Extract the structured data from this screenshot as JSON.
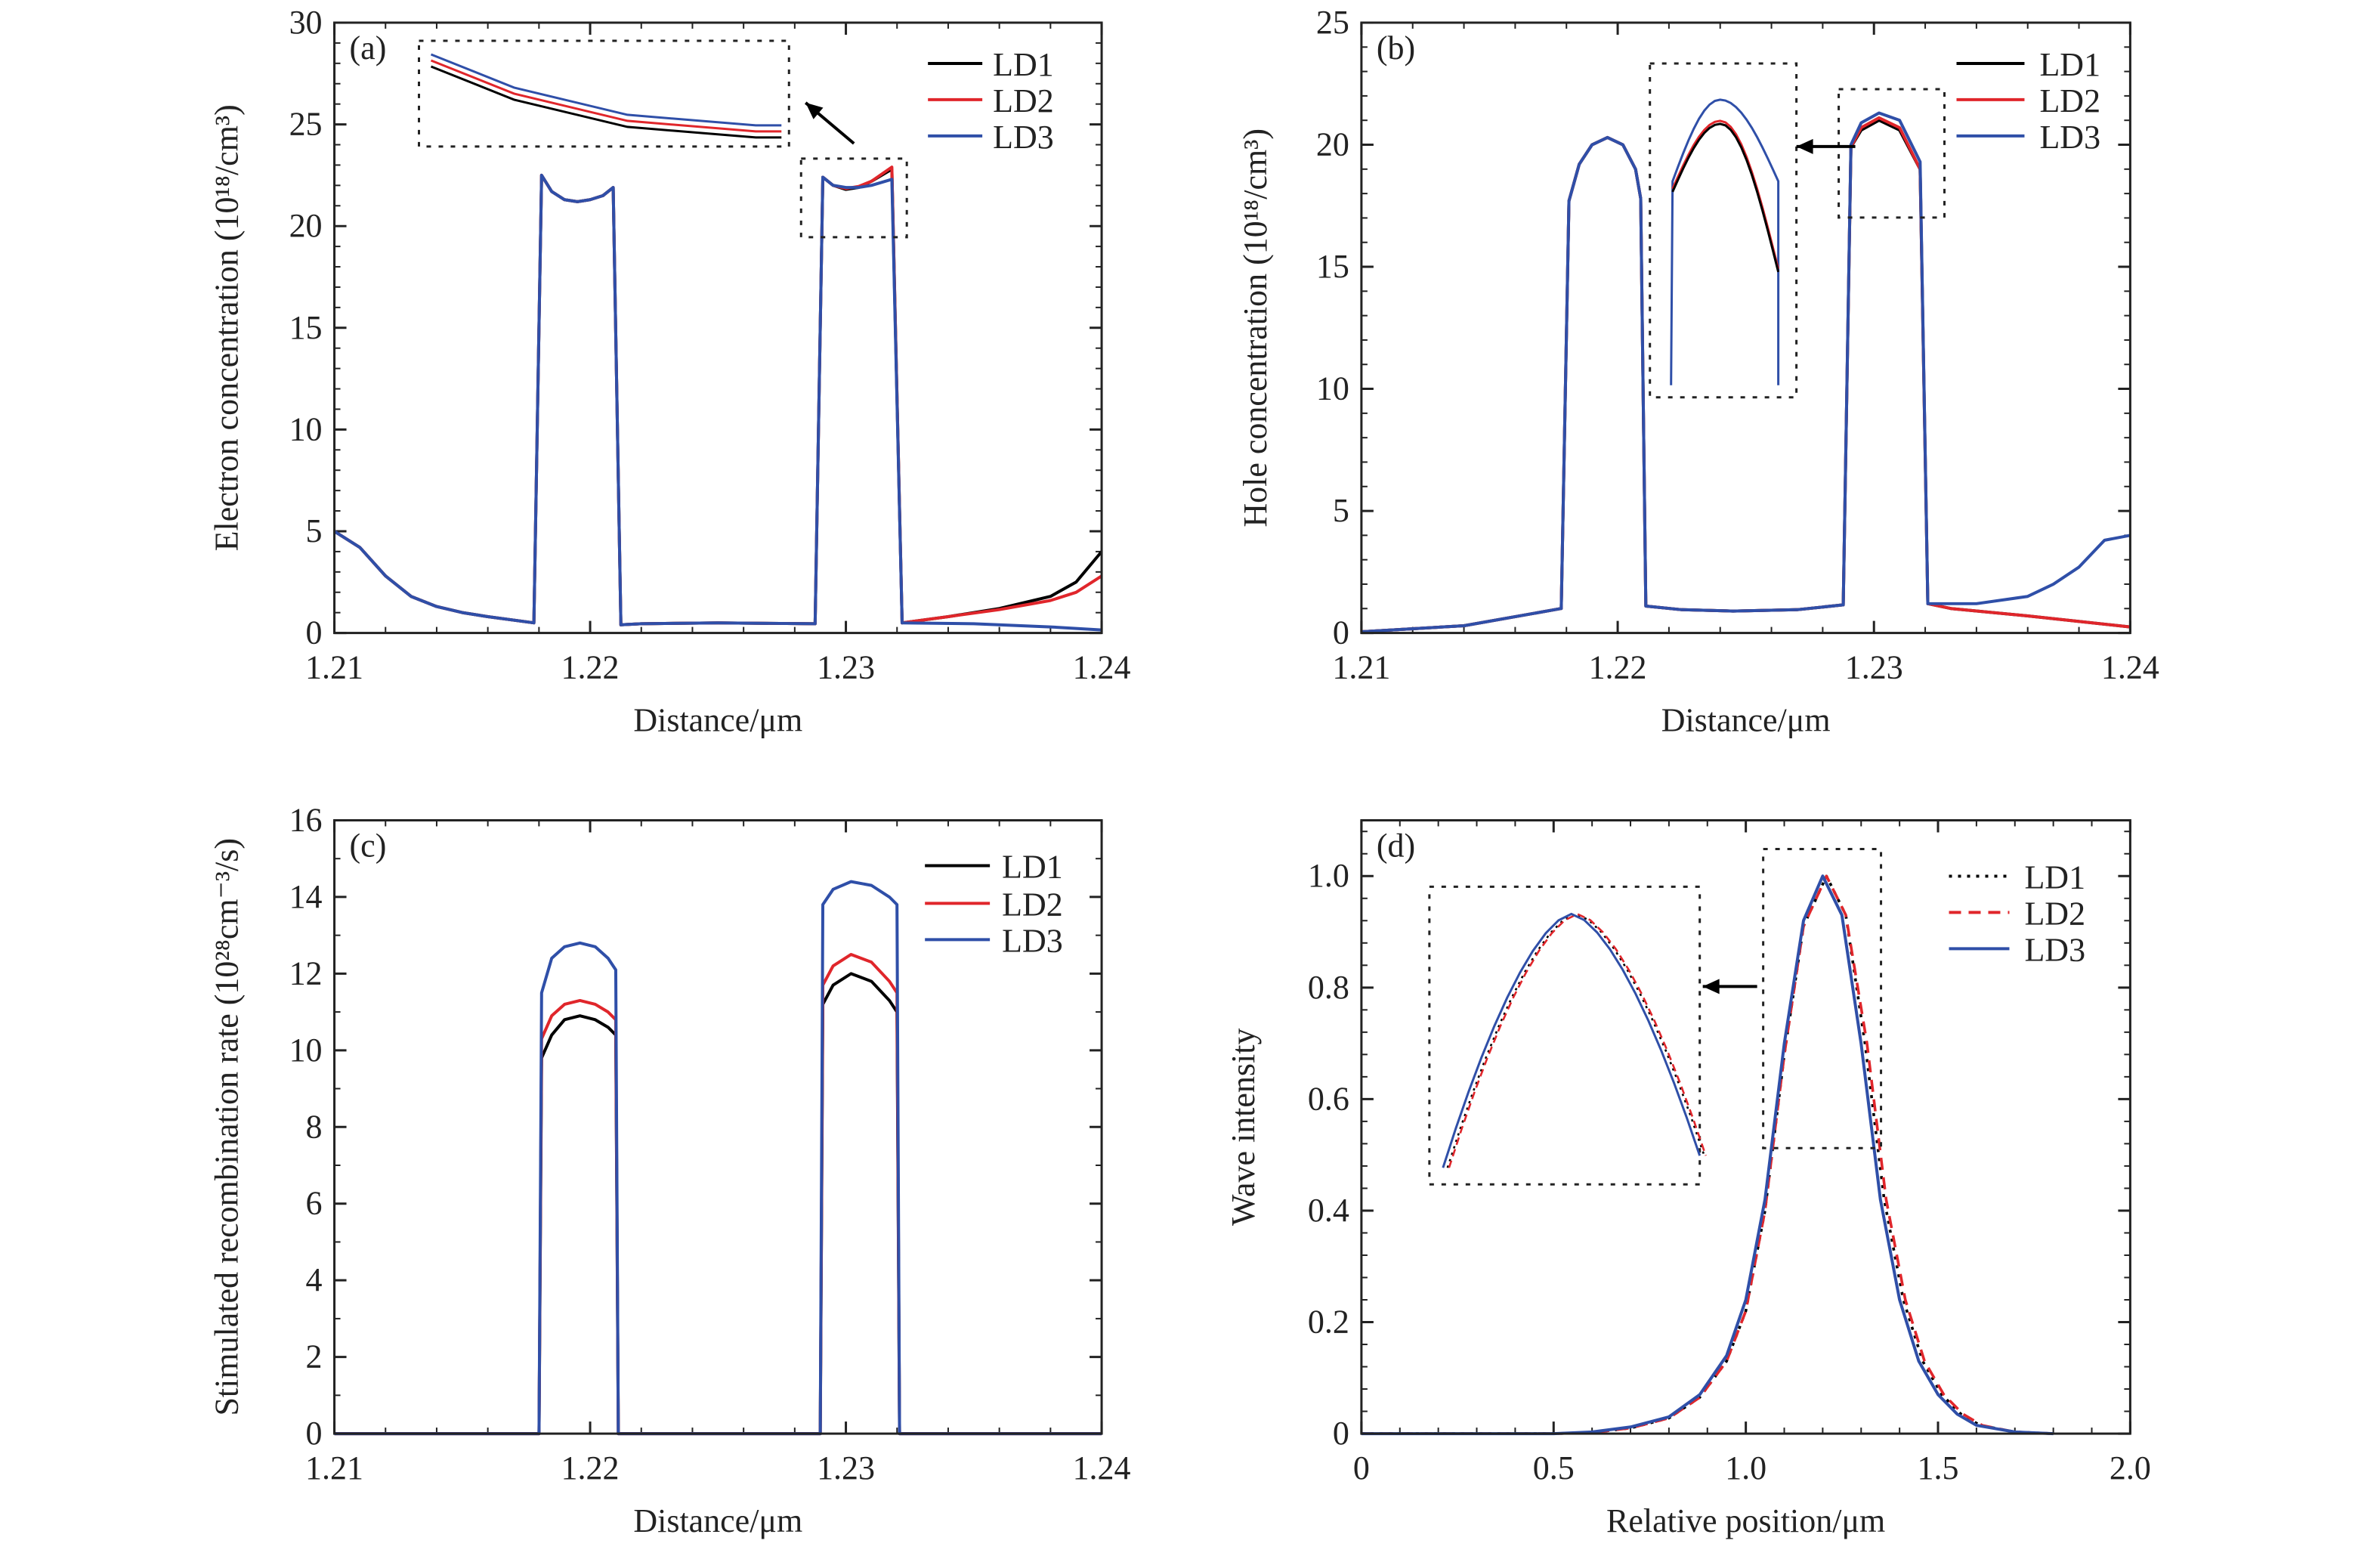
{
  "colors": {
    "LD1": "#000000",
    "LD2": "#e0262b",
    "LD3": "#2f4fa8"
  },
  "chart_data": [
    {
      "type": "line",
      "panel_label": "(a)",
      "xlabel": "Distance/μm",
      "ylabel": "Electron concentration (10¹⁸/cm³)",
      "xlim": [
        1.21,
        1.24
      ],
      "ylim": [
        0,
        30
      ],
      "xticks": [
        1.21,
        1.22,
        1.23,
        1.24
      ],
      "xtick_labels": [
        "1.21",
        "1.22",
        "1.23",
        "1.24"
      ],
      "xminor": 0.002,
      "yticks": [
        0,
        5,
        10,
        15,
        20,
        25,
        30
      ],
      "ytick_labels": [
        "0",
        "5",
        "10",
        "15",
        "20",
        "25",
        "30"
      ],
      "yminor": 1,
      "legend": {
        "placement": "top-right"
      },
      "series": [
        {
          "name": "LD1",
          "style": "solid",
          "x": [
            1.21,
            1.211,
            1.212,
            1.213,
            1.214,
            1.215,
            1.216,
            1.2178,
            1.2181,
            1.2185,
            1.219,
            1.2195,
            1.22,
            1.2205,
            1.2209,
            1.2212,
            1.222,
            1.225,
            1.2288,
            1.2291,
            1.2295,
            1.23,
            1.2305,
            1.231,
            1.2318,
            1.2322,
            1.234,
            1.236,
            1.238,
            1.239,
            1.24
          ],
          "y": [
            5,
            4.2,
            2.8,
            1.8,
            1.3,
            1.0,
            0.8,
            0.5,
            22.5,
            21.7,
            21.3,
            21.2,
            21.3,
            21.5,
            21.9,
            0.4,
            0.45,
            0.5,
            0.45,
            22.4,
            22.0,
            21.8,
            21.9,
            22.2,
            22.8,
            0.5,
            0.8,
            1.2,
            1.8,
            2.5,
            4.0
          ]
        },
        {
          "name": "LD2",
          "style": "solid",
          "x": [
            1.21,
            1.211,
            1.212,
            1.213,
            1.214,
            1.215,
            1.216,
            1.2178,
            1.2181,
            1.2185,
            1.219,
            1.2195,
            1.22,
            1.2205,
            1.2209,
            1.2212,
            1.222,
            1.225,
            1.2288,
            1.2291,
            1.2295,
            1.23,
            1.2305,
            1.231,
            1.2318,
            1.2322,
            1.234,
            1.236,
            1.238,
            1.239,
            1.24
          ],
          "y": [
            5,
            4.2,
            2.8,
            1.8,
            1.3,
            1.0,
            0.8,
            0.5,
            22.5,
            21.7,
            21.3,
            21.2,
            21.3,
            21.5,
            21.9,
            0.4,
            0.45,
            0.5,
            0.45,
            22.4,
            22.0,
            21.85,
            21.95,
            22.2,
            22.9,
            0.5,
            0.8,
            1.15,
            1.6,
            2.0,
            2.8
          ]
        },
        {
          "name": "LD3",
          "style": "solid",
          "x": [
            1.21,
            1.211,
            1.212,
            1.213,
            1.214,
            1.215,
            1.216,
            1.2178,
            1.2181,
            1.2185,
            1.219,
            1.2195,
            1.22,
            1.2205,
            1.2209,
            1.2212,
            1.222,
            1.225,
            1.2288,
            1.2291,
            1.2295,
            1.23,
            1.2305,
            1.231,
            1.2318,
            1.2322,
            1.235,
            1.238,
            1.24
          ],
          "y": [
            5,
            4.2,
            2.8,
            1.8,
            1.3,
            1.0,
            0.8,
            0.5,
            22.5,
            21.7,
            21.3,
            21.2,
            21.3,
            21.5,
            21.9,
            0.4,
            0.45,
            0.5,
            0.45,
            22.4,
            22.0,
            21.9,
            21.9,
            22.0,
            22.3,
            0.5,
            0.45,
            0.3,
            0.15
          ]
        }
      ]
    },
    {
      "type": "line",
      "panel_label": "(b)",
      "xlabel": "Distance/μm",
      "ylabel": "Hole concentration (10¹⁸/cm³)",
      "xlim": [
        1.21,
        1.24
      ],
      "ylim": [
        0,
        25
      ],
      "xticks": [
        1.21,
        1.22,
        1.23,
        1.24
      ],
      "xtick_labels": [
        "1.21",
        "1.22",
        "1.23",
        "1.24"
      ],
      "xminor": 0.002,
      "yticks": [
        0,
        5,
        10,
        15,
        20,
        25
      ],
      "ytick_labels": [
        "0",
        "5",
        "10",
        "15",
        "20",
        "25"
      ],
      "yminor": 1,
      "legend": {
        "placement": "top-right"
      },
      "series": [
        {
          "name": "LD1",
          "style": "solid",
          "x": [
            1.21,
            1.214,
            1.2178,
            1.2181,
            1.2185,
            1.219,
            1.2196,
            1.2202,
            1.2207,
            1.2209,
            1.2211,
            1.2225,
            1.2245,
            1.227,
            1.2288,
            1.2291,
            1.2295,
            1.2302,
            1.231,
            1.2318,
            1.2321,
            1.233,
            1.236,
            1.24
          ],
          "y": [
            0.05,
            0.3,
            1.0,
            17.7,
            19.2,
            20.0,
            20.3,
            20.0,
            19.0,
            17.8,
            1.1,
            0.95,
            0.9,
            0.95,
            1.15,
            19.9,
            20.6,
            21.0,
            20.6,
            19.0,
            1.2,
            1.0,
            0.7,
            0.25
          ]
        },
        {
          "name": "LD2",
          "style": "solid",
          "x": [
            1.21,
            1.214,
            1.2178,
            1.2181,
            1.2185,
            1.219,
            1.2196,
            1.2202,
            1.2207,
            1.2209,
            1.2211,
            1.2225,
            1.2245,
            1.227,
            1.2288,
            1.2291,
            1.2295,
            1.2302,
            1.231,
            1.2318,
            1.2321,
            1.233,
            1.236,
            1.24
          ],
          "y": [
            0.05,
            0.3,
            1.0,
            17.7,
            19.2,
            20.0,
            20.3,
            20.0,
            19.0,
            17.8,
            1.1,
            0.95,
            0.9,
            0.95,
            1.15,
            19.9,
            20.7,
            21.1,
            20.7,
            19.0,
            1.2,
            1.0,
            0.7,
            0.25
          ]
        },
        {
          "name": "LD3",
          "style": "solid",
          "x": [
            1.21,
            1.214,
            1.2178,
            1.2181,
            1.2185,
            1.219,
            1.2196,
            1.2202,
            1.2207,
            1.2209,
            1.2211,
            1.2225,
            1.2245,
            1.227,
            1.2288,
            1.2291,
            1.2295,
            1.2302,
            1.231,
            1.2318,
            1.2321,
            1.234,
            1.236,
            1.237,
            1.238,
            1.239,
            1.24
          ],
          "y": [
            0.05,
            0.3,
            1.0,
            17.7,
            19.2,
            20.0,
            20.3,
            20.0,
            19.0,
            17.8,
            1.1,
            0.95,
            0.9,
            0.95,
            1.15,
            20.0,
            20.9,
            21.3,
            21.0,
            19.3,
            1.2,
            1.2,
            1.5,
            2.0,
            2.7,
            3.8,
            4.0
          ]
        }
      ]
    },
    {
      "type": "line",
      "panel_label": "(c)",
      "xlabel": "Distance/μm",
      "ylabel": "Stimulated recombination rate (10²⁸cm⁻³/s)",
      "xlim": [
        1.21,
        1.24
      ],
      "ylim": [
        0,
        16
      ],
      "xticks": [
        1.21,
        1.22,
        1.23,
        1.24
      ],
      "xtick_labels": [
        "1.21",
        "1.22",
        "1.23",
        "1.24"
      ],
      "xminor": 0.002,
      "yticks": [
        0,
        2,
        4,
        6,
        8,
        10,
        12,
        14,
        16
      ],
      "ytick_labels": [
        "0",
        "2",
        "4",
        "6",
        "8",
        "10",
        "12",
        "14",
        "16"
      ],
      "yminor": 1,
      "legend": {
        "placement": "top-right"
      },
      "series": [
        {
          "name": "LD1",
          "style": "solid",
          "x": [
            1.21,
            1.218,
            1.2181,
            1.2185,
            1.219,
            1.2196,
            1.2202,
            1.2207,
            1.221,
            1.2211,
            1.229,
            1.2291,
            1.2295,
            1.2302,
            1.231,
            1.2317,
            1.232,
            1.2321,
            1.24
          ],
          "y": [
            0,
            0,
            9.8,
            10.4,
            10.8,
            10.9,
            10.8,
            10.6,
            10.4,
            0,
            0,
            11.2,
            11.7,
            12.0,
            11.8,
            11.3,
            11.0,
            0,
            0
          ]
        },
        {
          "name": "LD2",
          "style": "solid",
          "x": [
            1.21,
            1.218,
            1.2181,
            1.2185,
            1.219,
            1.2196,
            1.2202,
            1.2207,
            1.221,
            1.2211,
            1.229,
            1.2291,
            1.2295,
            1.2302,
            1.231,
            1.2317,
            1.232,
            1.2321,
            1.24
          ],
          "y": [
            0,
            0,
            10.3,
            10.9,
            11.2,
            11.3,
            11.2,
            11.0,
            10.8,
            0,
            0,
            11.7,
            12.2,
            12.5,
            12.3,
            11.8,
            11.5,
            0,
            0
          ]
        },
        {
          "name": "LD3",
          "style": "solid",
          "x": [
            1.21,
            1.218,
            1.2181,
            1.2185,
            1.219,
            1.2196,
            1.2202,
            1.2207,
            1.221,
            1.2211,
            1.229,
            1.2291,
            1.2295,
            1.2302,
            1.231,
            1.2317,
            1.232,
            1.2321,
            1.24
          ],
          "y": [
            0,
            0,
            11.5,
            12.4,
            12.7,
            12.8,
            12.7,
            12.4,
            12.1,
            0,
            0,
            13.8,
            14.2,
            14.4,
            14.3,
            14.0,
            13.8,
            0,
            0
          ]
        }
      ]
    },
    {
      "type": "line",
      "panel_label": "(d)",
      "xlabel": "Relative position/μm",
      "ylabel": "Wave intensity",
      "xlim": [
        0,
        2.0
      ],
      "ylim": [
        0,
        1.1
      ],
      "xticks": [
        0,
        0.5,
        1.0,
        1.5,
        2.0
      ],
      "xtick_labels": [
        "0",
        "0.5",
        "1.0",
        "1.5",
        "2.0"
      ],
      "xminor": 0.1,
      "yticks": [
        0,
        0.2,
        0.4,
        0.6,
        0.8,
        1.0
      ],
      "ytick_labels": [
        "0",
        "0.2",
        "0.4",
        "0.6",
        "0.8",
        "1.0"
      ],
      "yminor": 0.04,
      "legend": {
        "placement": "top-right"
      },
      "series": [
        {
          "name": "LD1",
          "style": "dotted",
          "x": [
            0,
            0.5,
            0.6,
            0.7,
            0.8,
            0.88,
            0.95,
            1.0,
            1.05,
            1.1,
            1.15,
            1.21,
            1.26,
            1.31,
            1.36,
            1.41,
            1.46,
            1.51,
            1.56,
            1.61,
            1.7,
            1.8
          ],
          "y": [
            0,
            0,
            0.002,
            0.01,
            0.028,
            0.065,
            0.13,
            0.22,
            0.4,
            0.68,
            0.91,
            1.0,
            0.93,
            0.7,
            0.42,
            0.24,
            0.13,
            0.07,
            0.035,
            0.015,
            0.003,
            0
          ]
        },
        {
          "name": "LD2",
          "style": "dashed",
          "x": [
            0,
            0.5,
            0.6,
            0.7,
            0.8,
            0.88,
            0.95,
            1.0,
            1.05,
            1.1,
            1.15,
            1.21,
            1.26,
            1.315,
            1.365,
            1.415,
            1.465,
            1.515,
            1.565,
            1.615,
            1.7,
            1.8
          ],
          "y": [
            0,
            0,
            0.002,
            0.01,
            0.028,
            0.065,
            0.13,
            0.22,
            0.4,
            0.68,
            0.91,
            1.0,
            0.93,
            0.7,
            0.42,
            0.24,
            0.13,
            0.07,
            0.035,
            0.015,
            0.003,
            0
          ]
        },
        {
          "name": "LD3",
          "style": "solid",
          "x": [
            0,
            0.5,
            0.6,
            0.7,
            0.8,
            0.88,
            0.95,
            1.0,
            1.05,
            1.1,
            1.15,
            1.2,
            1.25,
            1.3,
            1.35,
            1.4,
            1.45,
            1.5,
            1.55,
            1.6,
            1.7,
            1.8
          ],
          "y": [
            0,
            0,
            0.003,
            0.012,
            0.03,
            0.07,
            0.14,
            0.24,
            0.42,
            0.7,
            0.92,
            1.0,
            0.93,
            0.7,
            0.42,
            0.24,
            0.13,
            0.07,
            0.035,
            0.015,
            0.003,
            0
          ]
        }
      ]
    }
  ]
}
